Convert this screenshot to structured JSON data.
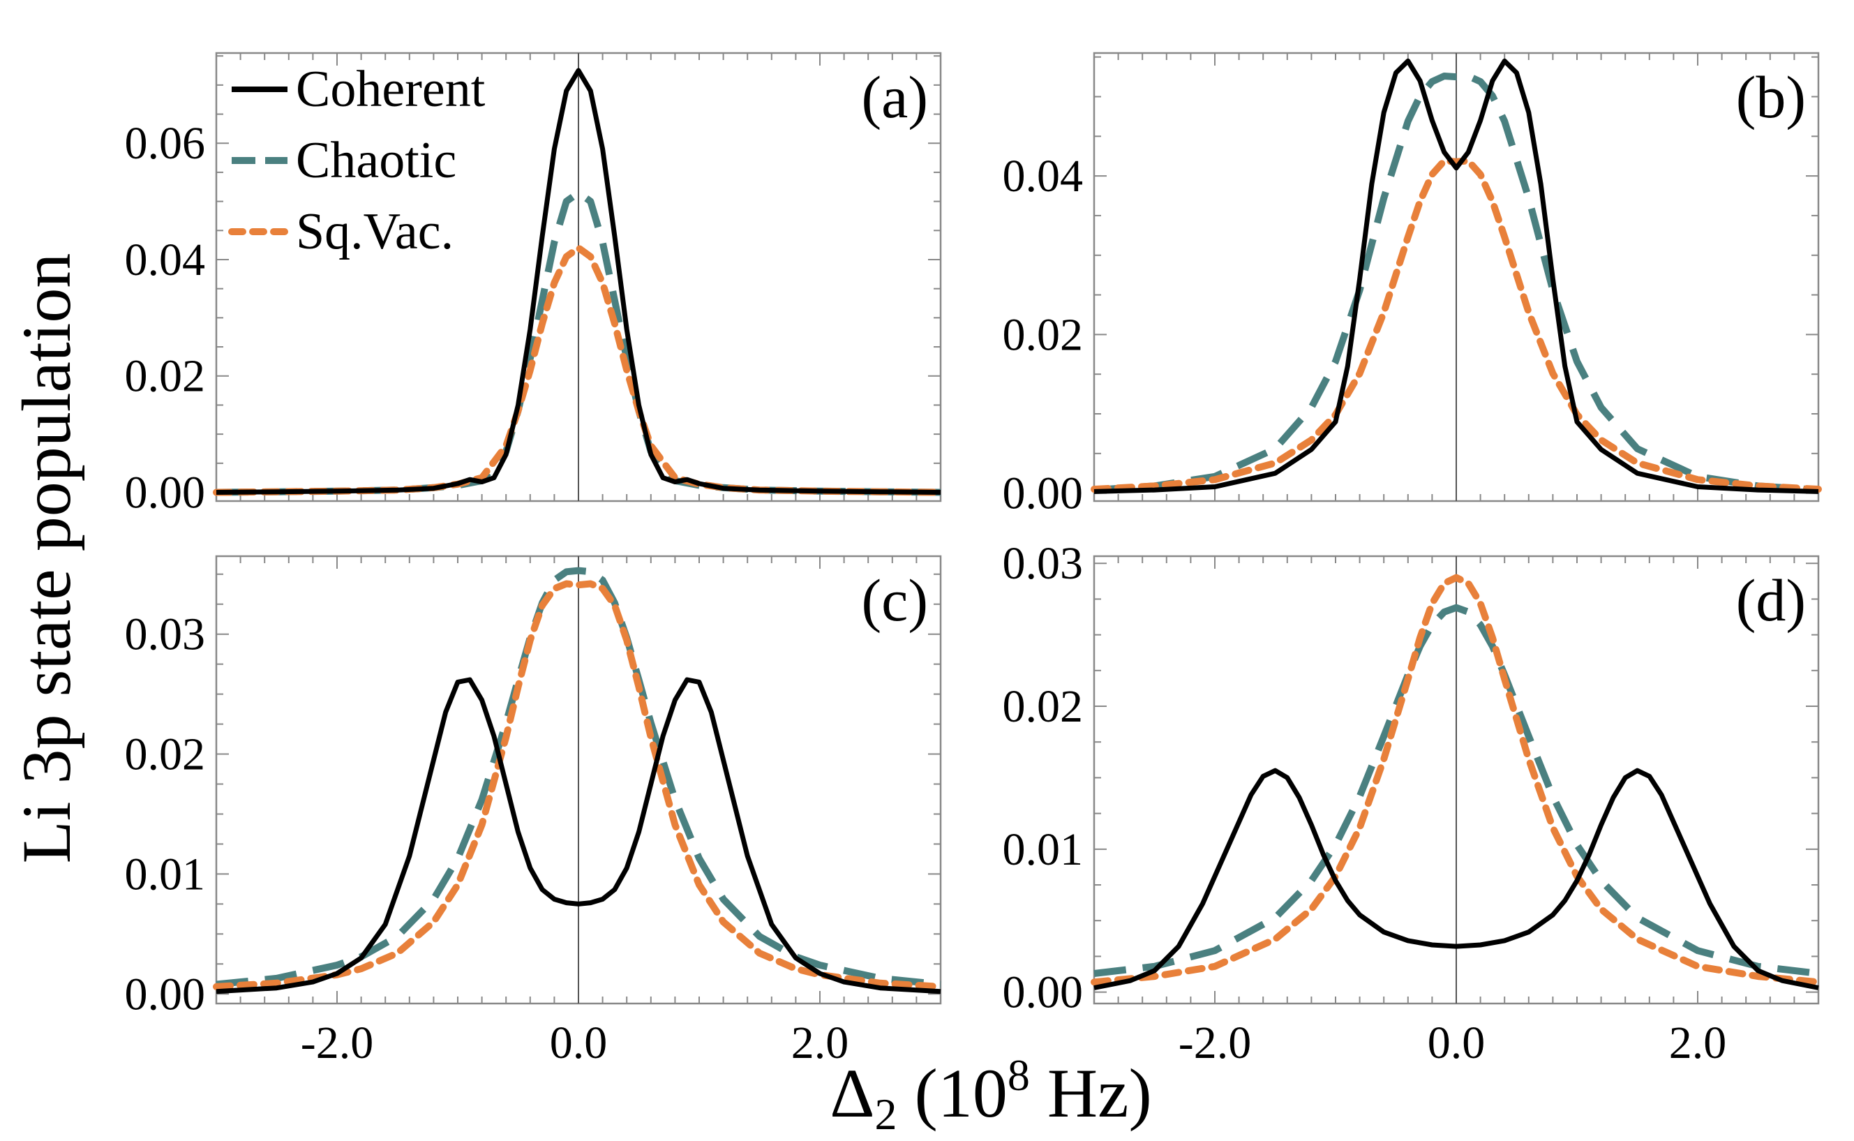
{
  "figure": {
    "ylabel": "Li 3p state population",
    "xlabel_main": "Δ",
    "xlabel_sub": "2",
    "xlabel_unit_pre": " (10",
    "xlabel_unit_exp": "8",
    "xlabel_unit_post": " Hz)",
    "colors": {
      "coherent": "#000000",
      "chaotic": "#4a8080",
      "sqvac": "#e8803a",
      "frame": "#888888",
      "zeroline": "#555555"
    }
  },
  "legend": {
    "items": [
      {
        "label": "Coherent",
        "series": "coherent"
      },
      {
        "label": "Chaotic",
        "series": "chaotic"
      },
      {
        "label": "Sq.Vac.",
        "series": "sqvac"
      }
    ]
  },
  "chart_data": [
    {
      "type": "line",
      "panel": "(a)",
      "xlim": [
        -3.0,
        3.0
      ],
      "ylim": [
        -0.0015,
        0.0755
      ],
      "xticks": [
        -2.0,
        0.0,
        2.0
      ],
      "xtick_labels": [
        "",
        "",
        ""
      ],
      "yticks": [
        0.0,
        0.02,
        0.04,
        0.06
      ],
      "ytick_labels": [
        "0.00",
        "0.02",
        "0.04",
        "0.06"
      ],
      "series": [
        {
          "name": "Coherent",
          "key": "coherent",
          "style": "solid",
          "x": [
            -3.0,
            -2.5,
            -2.0,
            -1.5,
            -1.2,
            -1.0,
            -0.9,
            -0.8,
            -0.7,
            -0.6,
            -0.5,
            -0.4,
            -0.3,
            -0.2,
            -0.1,
            0.0,
            0.1,
            0.2,
            0.3,
            0.4,
            0.5,
            0.6,
            0.7,
            0.8,
            0.9,
            1.0,
            1.2,
            1.5,
            2.0,
            2.5,
            3.0
          ],
          "y": [
            0.0,
            0.0001,
            0.0002,
            0.0004,
            0.0007,
            0.0015,
            0.0022,
            0.0018,
            0.0025,
            0.0065,
            0.015,
            0.028,
            0.044,
            0.059,
            0.069,
            0.0725,
            0.069,
            0.059,
            0.044,
            0.028,
            0.015,
            0.0065,
            0.0025,
            0.0018,
            0.0022,
            0.0015,
            0.0007,
            0.0004,
            0.0002,
            0.0001,
            0.0
          ]
        },
        {
          "name": "Chaotic",
          "key": "chaotic",
          "style": "dashed",
          "x": [
            -3.0,
            -2.5,
            -2.0,
            -1.5,
            -1.2,
            -1.0,
            -0.8,
            -0.6,
            -0.5,
            -0.4,
            -0.3,
            -0.2,
            -0.1,
            0.0,
            0.1,
            0.2,
            0.3,
            0.4,
            0.5,
            0.6,
            0.8,
            1.0,
            1.2,
            1.5,
            2.0,
            2.5,
            3.0
          ],
          "y": [
            0.0,
            0.0001,
            0.0002,
            0.0004,
            0.0008,
            0.0012,
            0.002,
            0.007,
            0.014,
            0.023,
            0.033,
            0.043,
            0.05,
            0.0515,
            0.05,
            0.043,
            0.033,
            0.023,
            0.014,
            0.007,
            0.002,
            0.0012,
            0.0008,
            0.0004,
            0.0002,
            0.0001,
            0.0
          ]
        },
        {
          "name": "Sq.Vac.",
          "key": "sqvac",
          "style": "dotted",
          "x": [
            -3.0,
            -2.5,
            -2.0,
            -1.5,
            -1.2,
            -1.0,
            -0.8,
            -0.6,
            -0.5,
            -0.4,
            -0.3,
            -0.2,
            -0.1,
            0.0,
            0.1,
            0.2,
            0.3,
            0.4,
            0.5,
            0.6,
            0.8,
            1.0,
            1.2,
            1.5,
            2.0,
            2.5,
            3.0
          ],
          "y": [
            0.0,
            0.0001,
            0.0002,
            0.0004,
            0.0008,
            0.0014,
            0.0025,
            0.008,
            0.014,
            0.021,
            0.029,
            0.036,
            0.0405,
            0.042,
            0.0405,
            0.036,
            0.029,
            0.021,
            0.014,
            0.008,
            0.0025,
            0.0014,
            0.0008,
            0.0004,
            0.0002,
            0.0001,
            0.0
          ]
        }
      ]
    },
    {
      "type": "line",
      "panel": "(b)",
      "xlim": [
        -3.0,
        3.0
      ],
      "ylim": [
        -0.001,
        0.0555
      ],
      "xticks": [
        -2.0,
        0.0,
        2.0
      ],
      "xtick_labels": [
        "",
        "",
        ""
      ],
      "yticks": [
        0.0,
        0.02,
        0.04
      ],
      "ytick_labels": [
        "0.00",
        "0.02",
        "0.04"
      ],
      "series": [
        {
          "name": "Coherent",
          "key": "coherent",
          "style": "solid",
          "x": [
            -3.0,
            -2.5,
            -2.0,
            -1.5,
            -1.2,
            -1.0,
            -0.9,
            -0.8,
            -0.7,
            -0.6,
            -0.5,
            -0.4,
            -0.3,
            -0.2,
            -0.1,
            0.0,
            0.1,
            0.2,
            0.3,
            0.4,
            0.5,
            0.6,
            0.7,
            0.8,
            0.9,
            1.0,
            1.2,
            1.5,
            2.0,
            2.5,
            3.0
          ],
          "y": [
            0.0002,
            0.0004,
            0.0008,
            0.0025,
            0.0055,
            0.009,
            0.016,
            0.027,
            0.039,
            0.048,
            0.053,
            0.0545,
            0.052,
            0.047,
            0.043,
            0.041,
            0.043,
            0.047,
            0.052,
            0.0545,
            0.053,
            0.048,
            0.039,
            0.027,
            0.016,
            0.009,
            0.0055,
            0.0025,
            0.0008,
            0.0004,
            0.0002
          ]
        },
        {
          "name": "Chaotic",
          "key": "chaotic",
          "style": "dashed",
          "x": [
            -3.0,
            -2.5,
            -2.0,
            -1.5,
            -1.2,
            -1.0,
            -0.8,
            -0.6,
            -0.4,
            -0.3,
            -0.2,
            -0.1,
            0.0,
            0.1,
            0.2,
            0.3,
            0.4,
            0.6,
            0.8,
            1.0,
            1.2,
            1.5,
            2.0,
            2.5,
            3.0
          ],
          "y": [
            0.0004,
            0.0009,
            0.0021,
            0.0056,
            0.0108,
            0.0166,
            0.0256,
            0.0372,
            0.0469,
            0.0501,
            0.0519,
            0.0526,
            0.0525,
            0.0526,
            0.0519,
            0.0501,
            0.0469,
            0.0372,
            0.0256,
            0.0166,
            0.0108,
            0.0056,
            0.0021,
            0.0009,
            0.0004
          ]
        },
        {
          "name": "Sq.Vac.",
          "key": "sqvac",
          "style": "dotted",
          "x": [
            -3.0,
            -2.5,
            -2.0,
            -1.5,
            -1.2,
            -1.0,
            -0.8,
            -0.6,
            -0.4,
            -0.3,
            -0.2,
            -0.1,
            0.0,
            0.1,
            0.2,
            0.3,
            0.4,
            0.6,
            0.8,
            1.0,
            1.2,
            1.5,
            2.0,
            2.5,
            3.0
          ],
          "y": [
            0.0005,
            0.0009,
            0.0017,
            0.0038,
            0.0067,
            0.0099,
            0.0151,
            0.0228,
            0.0323,
            0.0368,
            0.0402,
            0.0419,
            0.0418,
            0.0419,
            0.0402,
            0.0368,
            0.0323,
            0.0228,
            0.0151,
            0.0099,
            0.0067,
            0.0038,
            0.0017,
            0.0009,
            0.0005
          ]
        }
      ]
    },
    {
      "type": "line",
      "panel": "(c)",
      "xlim": [
        -3.0,
        3.0
      ],
      "ylim": [
        -0.0008,
        0.0365
      ],
      "xticks": [
        -2.0,
        0.0,
        2.0
      ],
      "xtick_labels": [
        "-2.0",
        "0.0",
        "2.0"
      ],
      "yticks": [
        0.0,
        0.01,
        0.02,
        0.03
      ],
      "ytick_labels": [
        "0.00",
        "0.01",
        "0.02",
        "0.03"
      ],
      "series": [
        {
          "name": "Coherent",
          "key": "coherent",
          "style": "solid",
          "x": [
            -3.0,
            -2.5,
            -2.2,
            -2.0,
            -1.8,
            -1.6,
            -1.4,
            -1.2,
            -1.1,
            -1.0,
            -0.9,
            -0.8,
            -0.7,
            -0.6,
            -0.5,
            -0.4,
            -0.3,
            -0.2,
            -0.1,
            0.0,
            0.1,
            0.2,
            0.3,
            0.4,
            0.5,
            0.6,
            0.7,
            0.8,
            0.9,
            1.0,
            1.1,
            1.2,
            1.4,
            1.6,
            1.8,
            2.0,
            2.2,
            2.5,
            3.0
          ],
          "y": [
            0.0002,
            0.0005,
            0.001,
            0.0017,
            0.003,
            0.0058,
            0.0115,
            0.0195,
            0.0235,
            0.026,
            0.0262,
            0.0245,
            0.0215,
            0.0175,
            0.0135,
            0.0105,
            0.0087,
            0.0079,
            0.0076,
            0.0075,
            0.0076,
            0.0079,
            0.0087,
            0.0105,
            0.0135,
            0.0175,
            0.0215,
            0.0245,
            0.0262,
            0.026,
            0.0235,
            0.0195,
            0.0115,
            0.0058,
            0.003,
            0.0017,
            0.001,
            0.0005,
            0.0002
          ]
        },
        {
          "name": "Chaotic",
          "key": "chaotic",
          "style": "dashed",
          "x": [
            -3.0,
            -2.5,
            -2.0,
            -1.8,
            -1.5,
            -1.2,
            -1.0,
            -0.8,
            -0.6,
            -0.5,
            -0.4,
            -0.3,
            -0.2,
            -0.1,
            0.0,
            0.1,
            0.2,
            0.3,
            0.4,
            0.5,
            0.6,
            0.8,
            1.0,
            1.2,
            1.5,
            1.8,
            2.0,
            2.5,
            3.0
          ],
          "y": [
            0.0008,
            0.0013,
            0.0024,
            0.0031,
            0.0048,
            0.0079,
            0.0113,
            0.0162,
            0.0226,
            0.0262,
            0.0297,
            0.0326,
            0.0345,
            0.0352,
            0.0353,
            0.0352,
            0.0345,
            0.0326,
            0.0297,
            0.0262,
            0.0226,
            0.0162,
            0.0113,
            0.0079,
            0.0048,
            0.0031,
            0.0024,
            0.0013,
            0.0008
          ]
        },
        {
          "name": "Sq.Vac.",
          "key": "sqvac",
          "style": "dotted",
          "x": [
            -3.0,
            -2.5,
            -2.0,
            -1.8,
            -1.5,
            -1.2,
            -1.0,
            -0.8,
            -0.6,
            -0.5,
            -0.4,
            -0.3,
            -0.2,
            -0.1,
            0.0,
            0.1,
            0.2,
            0.3,
            0.4,
            0.5,
            0.6,
            0.8,
            1.0,
            1.2,
            1.5,
            1.8,
            2.0,
            2.5,
            3.0
          ],
          "y": [
            0.0006,
            0.0009,
            0.0016,
            0.0021,
            0.0034,
            0.006,
            0.0091,
            0.0141,
            0.0214,
            0.0256,
            0.0295,
            0.0324,
            0.0338,
            0.0342,
            0.0341,
            0.0342,
            0.0338,
            0.0324,
            0.0295,
            0.0256,
            0.0214,
            0.0141,
            0.0091,
            0.006,
            0.0034,
            0.0021,
            0.0016,
            0.0009,
            0.0006
          ]
        }
      ]
    },
    {
      "type": "line",
      "panel": "(d)",
      "xlim": [
        -3.0,
        3.0
      ],
      "ylim": [
        -0.0008,
        0.0305
      ],
      "xticks": [
        -2.0,
        0.0,
        2.0
      ],
      "xtick_labels": [
        "-2.0",
        "0.0",
        "2.0"
      ],
      "yticks": [
        0.0,
        0.01,
        0.02,
        0.03
      ],
      "ytick_labels": [
        "0.00",
        "0.01",
        "0.02",
        "0.03"
      ],
      "series": [
        {
          "name": "Coherent",
          "key": "coherent",
          "style": "solid",
          "x": [
            -3.0,
            -2.7,
            -2.5,
            -2.3,
            -2.1,
            -1.9,
            -1.7,
            -1.6,
            -1.5,
            -1.4,
            -1.3,
            -1.2,
            -1.1,
            -1.0,
            -0.9,
            -0.8,
            -0.6,
            -0.4,
            -0.2,
            0.0,
            0.2,
            0.4,
            0.6,
            0.8,
            0.9,
            1.0,
            1.1,
            1.2,
            1.3,
            1.4,
            1.5,
            1.6,
            1.7,
            1.9,
            2.1,
            2.3,
            2.5,
            2.7,
            3.0
          ],
          "y": [
            0.0003,
            0.0008,
            0.0015,
            0.0032,
            0.0062,
            0.01,
            0.0138,
            0.0151,
            0.0155,
            0.015,
            0.0136,
            0.0117,
            0.0096,
            0.0078,
            0.0064,
            0.0054,
            0.0042,
            0.0036,
            0.0033,
            0.0032,
            0.0033,
            0.0036,
            0.0042,
            0.0054,
            0.0064,
            0.0078,
            0.0096,
            0.0117,
            0.0136,
            0.015,
            0.0155,
            0.0151,
            0.0138,
            0.01,
            0.0062,
            0.0032,
            0.0015,
            0.0008,
            0.0003
          ]
        },
        {
          "name": "Chaotic",
          "key": "chaotic",
          "style": "dashed",
          "x": [
            -3.0,
            -2.5,
            -2.0,
            -1.5,
            -1.2,
            -1.0,
            -0.8,
            -0.6,
            -0.4,
            -0.3,
            -0.2,
            -0.1,
            0.0,
            0.1,
            0.2,
            0.3,
            0.4,
            0.6,
            0.8,
            1.0,
            1.2,
            1.5,
            2.0,
            2.5,
            3.0
          ],
          "y": [
            0.0013,
            0.0018,
            0.0029,
            0.0052,
            0.0078,
            0.0103,
            0.0137,
            0.0179,
            0.0222,
            0.0242,
            0.0257,
            0.0266,
            0.0269,
            0.0266,
            0.0257,
            0.0242,
            0.0222,
            0.0179,
            0.0137,
            0.0103,
            0.0078,
            0.0052,
            0.0029,
            0.0018,
            0.0013
          ]
        },
        {
          "name": "Sq.Vac.",
          "key": "sqvac",
          "style": "dotted",
          "x": [
            -3.0,
            -2.5,
            -2.0,
            -1.5,
            -1.2,
            -1.0,
            -0.8,
            -0.6,
            -0.4,
            -0.3,
            -0.2,
            -0.1,
            0.0,
            0.1,
            0.2,
            0.3,
            0.4,
            0.6,
            0.8,
            1.0,
            1.2,
            1.5,
            2.0,
            2.5,
            3.0
          ],
          "y": [
            0.0007,
            0.0011,
            0.0018,
            0.0037,
            0.0058,
            0.0081,
            0.0115,
            0.0163,
            0.0219,
            0.0248,
            0.0272,
            0.0286,
            0.029,
            0.0286,
            0.0272,
            0.0248,
            0.0219,
            0.0163,
            0.0115,
            0.0081,
            0.0058,
            0.0037,
            0.0018,
            0.0011,
            0.0007
          ]
        }
      ]
    }
  ]
}
